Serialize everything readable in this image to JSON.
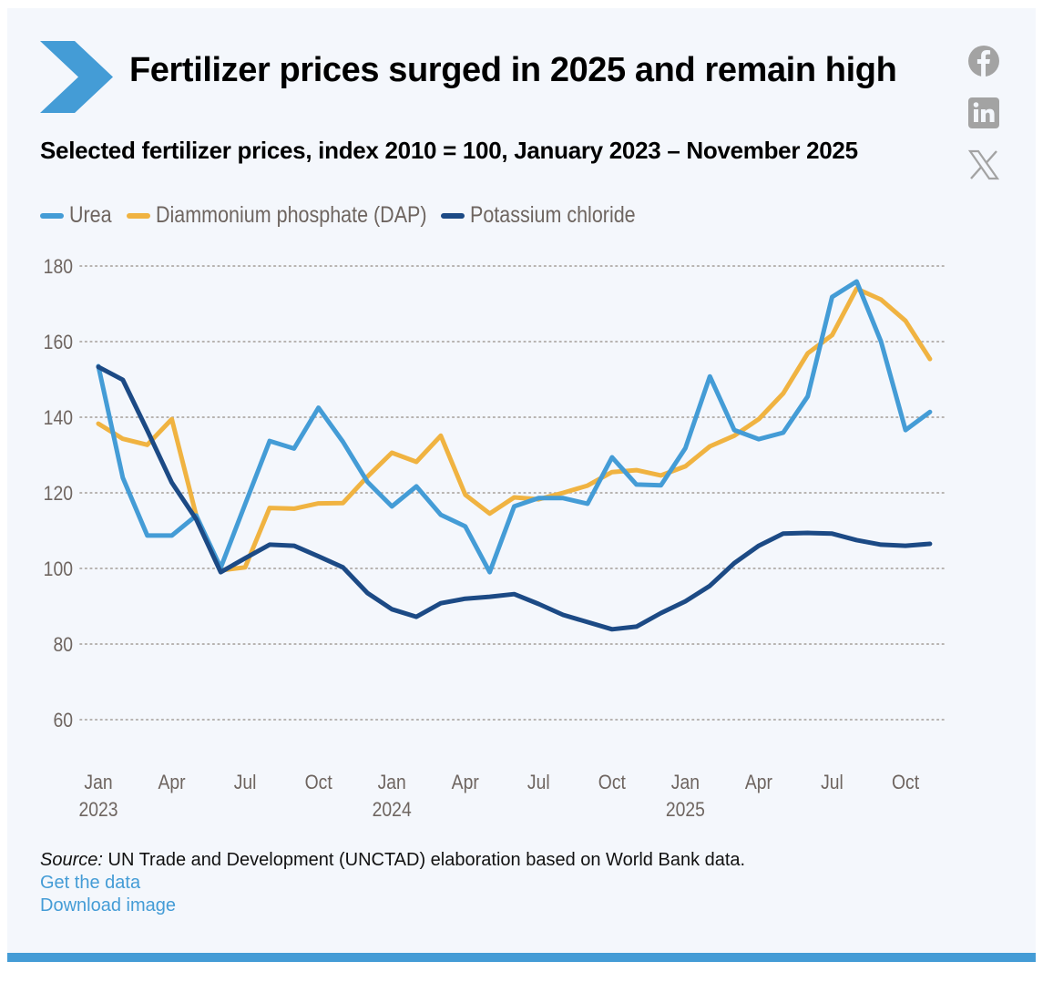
{
  "header": {
    "title": "Fertilizer prices surged in 2025 and remain high",
    "subtitle": "Selected fertilizer prices, index 2010 = 100, January 2023 – November 2025",
    "logo_icon": "chevron-right-icon",
    "brand_color": "#449cd6"
  },
  "social": [
    {
      "name": "facebook",
      "icon": "facebook-icon"
    },
    {
      "name": "linkedin",
      "icon": "linkedin-icon"
    },
    {
      "name": "x",
      "icon": "x-icon"
    }
  ],
  "footer": {
    "source_label": "Source:",
    "source_text": " UN Trade and Development (UNCTAD) elaboration based on World Bank data.",
    "get_data_link": "Get the data",
    "download_link": "Download image"
  },
  "chart_data": {
    "type": "line",
    "title": "Fertilizer prices surged in 2025 and remain high",
    "subtitle": "Selected fertilizer prices, index 2010 = 100, January 2023 – November 2025",
    "xlabel": "",
    "ylabel": "",
    "ylim": [
      60,
      180
    ],
    "yticks": [
      60,
      80,
      100,
      120,
      140,
      160,
      180
    ],
    "grid": true,
    "legend_position": "top-left",
    "x": [
      "2023-01",
      "2023-02",
      "2023-03",
      "2023-04",
      "2023-05",
      "2023-06",
      "2023-07",
      "2023-08",
      "2023-09",
      "2023-10",
      "2023-11",
      "2023-12",
      "2024-01",
      "2024-02",
      "2024-03",
      "2024-04",
      "2024-05",
      "2024-06",
      "2024-07",
      "2024-08",
      "2024-09",
      "2024-10",
      "2024-11",
      "2024-12",
      "2025-01",
      "2025-02",
      "2025-03",
      "2025-04",
      "2025-05",
      "2025-06",
      "2025-07",
      "2025-08",
      "2025-09",
      "2025-10",
      "2025-11"
    ],
    "xticks": [
      {
        "index": 0,
        "month": "Jan",
        "year": "2023"
      },
      {
        "index": 3,
        "month": "Apr",
        "year": ""
      },
      {
        "index": 6,
        "month": "Jul",
        "year": ""
      },
      {
        "index": 9,
        "month": "Oct",
        "year": ""
      },
      {
        "index": 12,
        "month": "Jan",
        "year": "2024"
      },
      {
        "index": 15,
        "month": "Apr",
        "year": ""
      },
      {
        "index": 18,
        "month": "Jul",
        "year": ""
      },
      {
        "index": 21,
        "month": "Oct",
        "year": ""
      },
      {
        "index": 24,
        "month": "Jan",
        "year": "2025"
      },
      {
        "index": 27,
        "month": "Apr",
        "year": ""
      },
      {
        "index": 30,
        "month": "Jul",
        "year": ""
      },
      {
        "index": 33,
        "month": "Oct",
        "year": ""
      }
    ],
    "series": [
      {
        "name": "Urea",
        "color": "#449cd6",
        "values": [
          153.5,
          124,
          108.7,
          108.7,
          114,
          100.2,
          117,
          133.7,
          131.7,
          142.5,
          133.5,
          122.9,
          116.4,
          121.7,
          114.2,
          111.1,
          99,
          116.4,
          118.6,
          118.6,
          117.1,
          129.4,
          122.2,
          122,
          131.8,
          150.8,
          136.6,
          134.2,
          135.9,
          145.5,
          171.8,
          175.9,
          160,
          136.6,
          141.4
        ]
      },
      {
        "name": "Diammonium phosphate (DAP)",
        "color": "#f0b341",
        "values": [
          138.3,
          134.3,
          132.7,
          139.5,
          114,
          99.5,
          100.3,
          116,
          115.8,
          117.2,
          117.3,
          124.3,
          130.6,
          128.2,
          135.1,
          119.5,
          114.5,
          118.8,
          118.3,
          120,
          121.9,
          125.5,
          126,
          124.6,
          127,
          132.3,
          135.1,
          139.5,
          146.3,
          156.9,
          161.7,
          174,
          171.1,
          165.5,
          155.4
        ]
      },
      {
        "name": "Potassium chloride",
        "color": "#1c4a85",
        "values": [
          153.3,
          149.9,
          136.5,
          122.7,
          113,
          99,
          102.7,
          106.3,
          106,
          103.2,
          100.3,
          93.5,
          89.2,
          87.2,
          90.8,
          92,
          92.5,
          93.2,
          90.6,
          87.7,
          85.8,
          83.9,
          84.6,
          88.2,
          91.3,
          95.4,
          101.4,
          106,
          109.2,
          109.4,
          109.2,
          107.5,
          106.3,
          106,
          106.5
        ]
      }
    ]
  }
}
